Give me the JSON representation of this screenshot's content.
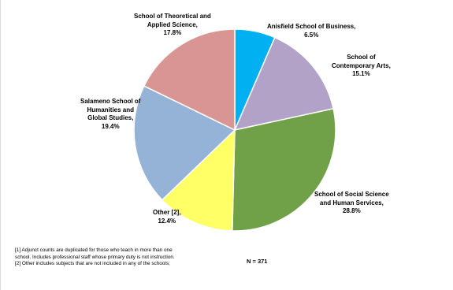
{
  "chart_data": {
    "type": "pie",
    "slices": [
      {
        "name": "Anisfield School of Business,",
        "value": 6.5,
        "label": "6.5%",
        "color": "#00b0f0"
      },
      {
        "name": "School of Contemporary Arts,",
        "value": 15.1,
        "label": "15.1%",
        "color": "#b3a2c7"
      },
      {
        "name": "School of Social Science and Human Services,",
        "value": 28.8,
        "label": "28.8%",
        "color": "#70a047"
      },
      {
        "name": "Other [2],",
        "value": 12.4,
        "label": "12.4%",
        "color": "#ffff66"
      },
      {
        "name": "Salameno School of Humanities and Global Studies,",
        "value": 19.4,
        "label": "19.4%",
        "color": "#95b3d7"
      },
      {
        "name": "School of Theoretical and Applied Science,",
        "value": 17.8,
        "label": "17.8%",
        "color": "#d99594"
      }
    ],
    "labels_text": {
      "business_1": "Anisfield School of Business,",
      "arts_1": "School of",
      "arts_2": "Contemporary Arts,",
      "social_1": "School of Social Science",
      "social_2": "and Human Services,",
      "other_1": "Other [2],",
      "humanities_1": "Salameno School of",
      "humanities_2": "Humanities and",
      "humanities_3": "Global Studies,",
      "science_1": "School of Theoretical and",
      "science_2": "Applied Science,"
    }
  },
  "notes": {
    "line1": "[1] Adjunct counts are duplicated for those who teach in more than one",
    "line2": "school.  Includes professional staff whose primary duty is not instruction.",
    "line3": "[2] Other includes subjects that are not included in any of the schools;"
  },
  "n_label": "N = 371"
}
